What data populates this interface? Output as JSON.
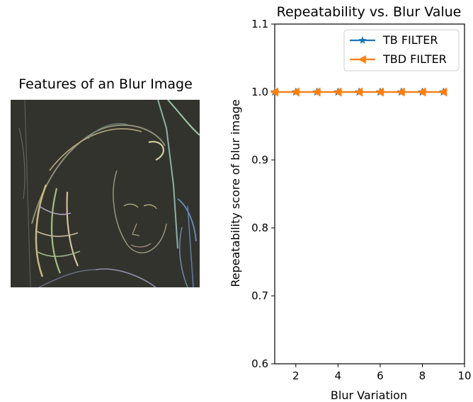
{
  "left_panel": {
    "title": "Features of an Blur Image",
    "image_description_icon": "feature-edge-image"
  },
  "chart_data": {
    "type": "line",
    "title": "Repeatability vs. Blur Value",
    "xlabel": "Blur Variation",
    "ylabel": "Repeatability score of blur image",
    "xlim": [
      1,
      10
    ],
    "ylim": [
      0.6,
      1.1
    ],
    "xticks": [
      2,
      4,
      6,
      8,
      10
    ],
    "yticks": [
      0.6,
      0.7,
      0.8,
      0.9,
      1.0,
      1.1
    ],
    "x": [
      1,
      2,
      3,
      4,
      5,
      6,
      7,
      8,
      9
    ],
    "series": [
      {
        "name": "TB FILTER",
        "values": [
          1,
          1,
          1,
          1,
          1,
          1,
          1,
          1,
          1
        ],
        "color": "#1f77b4",
        "marker": "star"
      },
      {
        "name": "TBD FILTER",
        "values": [
          1,
          1,
          1,
          1,
          1,
          1,
          1,
          1,
          1
        ],
        "color": "#ff7f0e",
        "marker": "triangle-left"
      }
    ],
    "legend": "top-right",
    "grid": false
  }
}
